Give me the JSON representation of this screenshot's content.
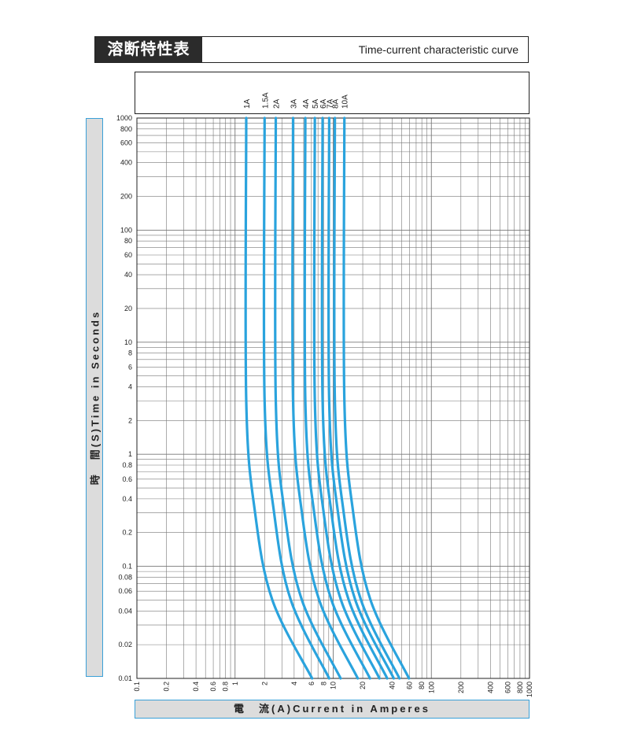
{
  "title": {
    "japanese": "溶断特性表",
    "english": "Time-current characteristic curve"
  },
  "chart_data": {
    "type": "line",
    "xlabel": "電　流(A)Current in Amperes",
    "ylabel": "時　間(S)Time in Seconds",
    "x_scale": "log",
    "y_scale": "log",
    "xlim": [
      0.1,
      1000
    ],
    "ylim": [
      0.01,
      1000
    ],
    "grid": true,
    "series_color": "#2aa3dd",
    "x_ticks": [
      "0.1",
      "0.2",
      "0.4",
      "0.6",
      "0.8",
      "1",
      "2",
      "4",
      "6",
      "8",
      "10",
      "20",
      "40",
      "60",
      "80",
      "100",
      "200",
      "400",
      "600",
      "800",
      "1000"
    ],
    "y_ticks": [
      "1000",
      "800",
      "600",
      "400",
      "200",
      "100",
      "80",
      "60",
      "40",
      "20",
      "10",
      "8",
      "6",
      "4",
      "2",
      "1",
      "0.8",
      "0.6",
      "0.4",
      "0.2",
      "0.1",
      "0.08",
      "0.06",
      "0.04",
      "0.02",
      "0.01"
    ],
    "series": [
      {
        "name": "1A",
        "points": [
          [
            1.3,
            1000
          ],
          [
            1.3,
            3
          ],
          [
            1.6,
            0.3
          ],
          [
            2.4,
            0.05
          ],
          [
            6.1,
            0.01
          ]
        ]
      },
      {
        "name": "1.5A",
        "points": [
          [
            2.0,
            1000
          ],
          [
            2.0,
            3
          ],
          [
            2.5,
            0.3
          ],
          [
            3.7,
            0.05
          ],
          [
            9.1,
            0.01
          ]
        ]
      },
      {
        "name": "2A",
        "points": [
          [
            2.6,
            1000
          ],
          [
            2.6,
            3
          ],
          [
            3.2,
            0.3
          ],
          [
            4.8,
            0.05
          ],
          [
            11.9,
            0.01
          ]
        ]
      },
      {
        "name": "3A",
        "points": [
          [
            3.9,
            1000
          ],
          [
            3.9,
            3
          ],
          [
            4.8,
            0.3
          ],
          [
            7.2,
            0.05
          ],
          [
            17.8,
            0.01
          ]
        ]
      },
      {
        "name": "4A",
        "points": [
          [
            5.2,
            1000
          ],
          [
            5.2,
            3
          ],
          [
            6.4,
            0.3
          ],
          [
            9.6,
            0.05
          ],
          [
            23.7,
            0.01
          ]
        ]
      },
      {
        "name": "5A",
        "points": [
          [
            6.5,
            1000
          ],
          [
            6.5,
            3
          ],
          [
            8.0,
            0.3
          ],
          [
            12.0,
            0.05
          ],
          [
            29.6,
            0.01
          ]
        ]
      },
      {
        "name": "6A",
        "points": [
          [
            7.8,
            1000
          ],
          [
            7.8,
            3
          ],
          [
            9.6,
            0.3
          ],
          [
            14.4,
            0.05
          ],
          [
            35.5,
            0.01
          ]
        ]
      },
      {
        "name": "7A",
        "points": [
          [
            9.1,
            1000
          ],
          [
            9.1,
            3
          ],
          [
            11.2,
            0.3
          ],
          [
            16.8,
            0.05
          ],
          [
            41.4,
            0.01
          ]
        ]
      },
      {
        "name": "8A",
        "points": [
          [
            10.4,
            1000
          ],
          [
            10.4,
            3
          ],
          [
            12.8,
            0.3
          ],
          [
            19.2,
            0.05
          ],
          [
            47.3,
            0.01
          ]
        ]
      },
      {
        "name": "10A",
        "points": [
          [
            13.0,
            1000
          ],
          [
            13.0,
            3
          ],
          [
            16.0,
            0.3
          ],
          [
            24.0,
            0.05
          ],
          [
            59.2,
            0.01
          ]
        ]
      }
    ]
  }
}
